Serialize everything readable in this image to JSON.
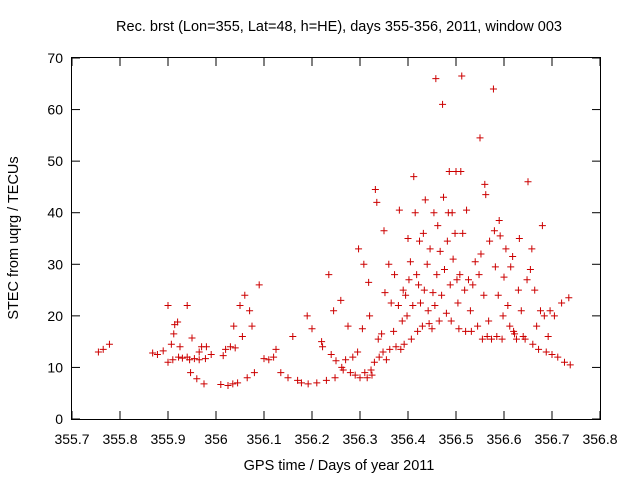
{
  "chart_data": {
    "type": "scatter",
    "title": "Rec. brst (Lon=355, Lat=48, h=HE), days 355-356, 2011, window 003",
    "xlabel": "GPS time / Days of year 2011",
    "ylabel": "STEC from uqrg / TECUs",
    "xlim": [
      355.7,
      356.8
    ],
    "ylim": [
      0,
      70
    ],
    "x_ticks": [
      "355.7",
      "355.8",
      "355.9",
      "356",
      "356.1",
      "356.2",
      "356.3",
      "356.4",
      "356.5",
      "356.6",
      "356.7",
      "356.8"
    ],
    "y_ticks": [
      "0",
      "10",
      "20",
      "30",
      "40",
      "50",
      "60",
      "70"
    ],
    "grid": false,
    "legend": "none",
    "marker": "+",
    "color": "#cc0000",
    "series": [
      {
        "points": [
          [
            355.755,
            13.0
          ],
          [
            355.765,
            13.5
          ],
          [
            355.778,
            14.5
          ],
          [
            355.868,
            12.8
          ],
          [
            355.878,
            12.5
          ],
          [
            355.89,
            13.2
          ],
          [
            355.9,
            11.0
          ],
          [
            355.9,
            22.0
          ],
          [
            355.907,
            14.5
          ],
          [
            355.91,
            11.5
          ],
          [
            355.912,
            16.5
          ],
          [
            355.914,
            18.3
          ],
          [
            355.92,
            18.8
          ],
          [
            355.922,
            12.0
          ],
          [
            355.925,
            14.0
          ],
          [
            355.93,
            11.8
          ],
          [
            355.94,
            12.0
          ],
          [
            355.94,
            22.0
          ],
          [
            355.945,
            11.5
          ],
          [
            355.947,
            9.0
          ],
          [
            355.95,
            15.7
          ],
          [
            355.955,
            11.7
          ],
          [
            355.96,
            7.8
          ],
          [
            355.965,
            11.5
          ],
          [
            355.965,
            13.0
          ],
          [
            355.97,
            14.0
          ],
          [
            355.975,
            6.8
          ],
          [
            355.978,
            11.7
          ],
          [
            355.98,
            14.0
          ],
          [
            355.99,
            12.5
          ],
          [
            356.01,
            6.7
          ],
          [
            356.015,
            12.3
          ],
          [
            356.02,
            13.5
          ],
          [
            356.025,
            6.5
          ],
          [
            356.03,
            14.0
          ],
          [
            356.035,
            6.8
          ],
          [
            356.037,
            18.0
          ],
          [
            356.04,
            13.8
          ],
          [
            356.045,
            7.0
          ],
          [
            356.05,
            22.0
          ],
          [
            356.055,
            16.0
          ],
          [
            356.06,
            24.0
          ],
          [
            356.065,
            8.0
          ],
          [
            356.07,
            21.0
          ],
          [
            356.075,
            18.0
          ],
          [
            356.08,
            9.0
          ],
          [
            356.09,
            26.0
          ],
          [
            356.1,
            11.7
          ],
          [
            356.11,
            11.5
          ],
          [
            356.12,
            12.0
          ],
          [
            356.125,
            13.5
          ],
          [
            356.135,
            9.0
          ],
          [
            356.15,
            8.0
          ],
          [
            356.16,
            16.0
          ],
          [
            356.17,
            7.5
          ],
          [
            356.178,
            7.0
          ],
          [
            356.19,
            20.0
          ],
          [
            356.192,
            6.8
          ],
          [
            356.2,
            17.5
          ],
          [
            356.21,
            7.0
          ],
          [
            356.22,
            15.0
          ],
          [
            356.222,
            14.0
          ],
          [
            356.23,
            7.5
          ],
          [
            356.235,
            28.0
          ],
          [
            356.24,
            12.5
          ],
          [
            356.245,
            21.0
          ],
          [
            356.248,
            8.0
          ],
          [
            356.25,
            11.3
          ],
          [
            356.26,
            23.0
          ],
          [
            356.262,
            10.0
          ],
          [
            356.265,
            9.5
          ],
          [
            356.27,
            11.5
          ],
          [
            356.275,
            18.0
          ],
          [
            356.28,
            9.0
          ],
          [
            356.285,
            12.0
          ],
          [
            356.29,
            8.5
          ],
          [
            356.295,
            13.0
          ],
          [
            356.297,
            33.0
          ],
          [
            356.3,
            8.0
          ],
          [
            356.305,
            17.5
          ],
          [
            356.308,
            30.0
          ],
          [
            356.31,
            9.0
          ],
          [
            356.315,
            8.0
          ],
          [
            356.318,
            26.5
          ],
          [
            356.32,
            20.0
          ],
          [
            356.323,
            9.5
          ],
          [
            356.325,
            8.5
          ],
          [
            356.33,
            11.0
          ],
          [
            356.332,
            44.5
          ],
          [
            356.335,
            42.0
          ],
          [
            356.338,
            15.5
          ],
          [
            356.34,
            12.0
          ],
          [
            356.345,
            16.5
          ],
          [
            356.348,
            13.0
          ],
          [
            356.35,
            36.5
          ],
          [
            356.352,
            24.5
          ],
          [
            356.355,
            11.5
          ],
          [
            356.36,
            30.0
          ],
          [
            356.362,
            13.5
          ],
          [
            356.365,
            22.5
          ],
          [
            356.37,
            17.0
          ],
          [
            356.372,
            28.0
          ],
          [
            356.375,
            14.0
          ],
          [
            356.38,
            22.0
          ],
          [
            356.382,
            40.5
          ],
          [
            356.385,
            13.5
          ],
          [
            356.388,
            19.0
          ],
          [
            356.39,
            25.0
          ],
          [
            356.392,
            14.5
          ],
          [
            356.395,
            24.0
          ],
          [
            356.398,
            20.0
          ],
          [
            356.4,
            35.0
          ],
          [
            356.402,
            27.0
          ],
          [
            356.405,
            30.5
          ],
          [
            356.407,
            15.5
          ],
          [
            356.41,
            22.0
          ],
          [
            356.412,
            47.0
          ],
          [
            356.415,
            40.0
          ],
          [
            356.418,
            28.0
          ],
          [
            356.42,
            17.0
          ],
          [
            356.422,
            26.0
          ],
          [
            356.424,
            34.5
          ],
          [
            356.426,
            22.5
          ],
          [
            356.43,
            18.0
          ],
          [
            356.432,
            36.0
          ],
          [
            356.434,
            25.0
          ],
          [
            356.436,
            42.5
          ],
          [
            356.44,
            30.0
          ],
          [
            356.442,
            21.0
          ],
          [
            356.444,
            18.5
          ],
          [
            356.446,
            33.0
          ],
          [
            356.45,
            17.5
          ],
          [
            356.452,
            24.5
          ],
          [
            356.454,
            40.0
          ],
          [
            356.456,
            22.0
          ],
          [
            356.458,
            66.0
          ],
          [
            356.46,
            28.0
          ],
          [
            356.462,
            37.5
          ],
          [
            356.465,
            19.0
          ],
          [
            356.467,
            32.5
          ],
          [
            356.47,
            24.0
          ],
          [
            356.472,
            61.0
          ],
          [
            356.474,
            43.0
          ],
          [
            356.476,
            29.0
          ],
          [
            356.48,
            20.5
          ],
          [
            356.482,
            34.5
          ],
          [
            356.484,
            40.0
          ],
          [
            356.486,
            48.0
          ],
          [
            356.488,
            26.0
          ],
          [
            356.49,
            19.0
          ],
          [
            356.492,
            40.0
          ],
          [
            356.494,
            31.0
          ],
          [
            356.498,
            36.0
          ],
          [
            356.5,
            48.0
          ],
          [
            356.502,
            27.0
          ],
          [
            356.504,
            22.5
          ],
          [
            356.506,
            17.5
          ],
          [
            356.508,
            28.0
          ],
          [
            356.51,
            48.0
          ],
          [
            356.512,
            66.5
          ],
          [
            356.514,
            36.0
          ],
          [
            356.518,
            25.0
          ],
          [
            356.52,
            17.0
          ],
          [
            356.522,
            40.5
          ],
          [
            356.526,
            27.0
          ],
          [
            356.53,
            21.0
          ],
          [
            356.532,
            17.0
          ],
          [
            356.535,
            26.0
          ],
          [
            356.54,
            30.5
          ],
          [
            356.545,
            18.0
          ],
          [
            356.548,
            28.0
          ],
          [
            356.55,
            54.5
          ],
          [
            356.552,
            32.0
          ],
          [
            356.555,
            15.5
          ],
          [
            356.558,
            24.0
          ],
          [
            356.56,
            45.5
          ],
          [
            356.562,
            43.5
          ],
          [
            356.565,
            16.0
          ],
          [
            356.568,
            19.0
          ],
          [
            356.57,
            34.5
          ],
          [
            356.574,
            15.5
          ],
          [
            356.578,
            64.0
          ],
          [
            356.58,
            36.5
          ],
          [
            356.582,
            29.5
          ],
          [
            356.585,
            16.0
          ],
          [
            356.588,
            24.0
          ],
          [
            356.59,
            38.5
          ],
          [
            356.592,
            35.5
          ],
          [
            356.596,
            15.5
          ],
          [
            356.598,
            20.0
          ],
          [
            356.6,
            27.5
          ],
          [
            356.604,
            33.0
          ],
          [
            356.608,
            22.0
          ],
          [
            356.612,
            18.0
          ],
          [
            356.614,
            29.5
          ],
          [
            356.618,
            31.5
          ],
          [
            356.62,
            17.0
          ],
          [
            356.622,
            16.5
          ],
          [
            356.626,
            15.5
          ],
          [
            356.63,
            25.0
          ],
          [
            356.632,
            35.0
          ],
          [
            356.636,
            21.0
          ],
          [
            356.64,
            16.0
          ],
          [
            356.644,
            15.5
          ],
          [
            356.648,
            27.0
          ],
          [
            356.65,
            46.0
          ],
          [
            356.655,
            29.0
          ],
          [
            356.658,
            33.0
          ],
          [
            356.66,
            14.5
          ],
          [
            356.664,
            25.0
          ],
          [
            356.668,
            18.0
          ],
          [
            356.672,
            13.5
          ],
          [
            356.676,
            21.0
          ],
          [
            356.68,
            37.5
          ],
          [
            356.684,
            20.0
          ],
          [
            356.688,
            13.0
          ],
          [
            356.692,
            16.0
          ],
          [
            356.696,
            21.0
          ],
          [
            356.7,
            12.5
          ],
          [
            356.705,
            20.0
          ],
          [
            356.712,
            12.0
          ],
          [
            356.72,
            22.5
          ],
          [
            356.726,
            11.0
          ],
          [
            356.735,
            23.5
          ],
          [
            356.738,
            10.5
          ]
        ]
      }
    ]
  }
}
